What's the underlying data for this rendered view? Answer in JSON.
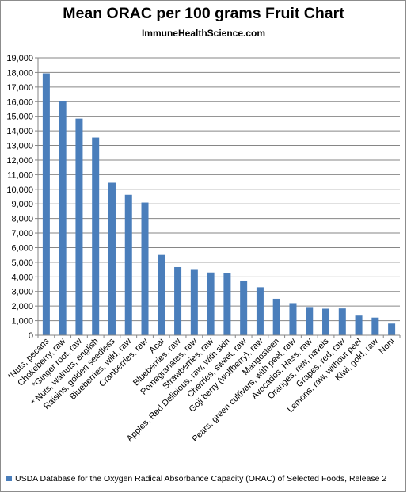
{
  "header": {
    "title": "Mean ORAC per 100 grams Fruit Chart",
    "subtitle": "ImmuneHealthScience.com"
  },
  "legend": {
    "label": "USDA Database for the Oxygen Radical Absorbance Capacity (ORAC) of Selected Foods, Release 2"
  },
  "colors": {
    "bar": "#4a7ebb",
    "grid": "#868686",
    "axis": "#868686"
  },
  "chart_data": {
    "type": "bar",
    "title": "Mean ORAC per 100 grams Fruit Chart",
    "subtitle": "ImmuneHealthScience.com",
    "xlabel": "",
    "ylabel": "",
    "ylim": [
      0,
      19000
    ],
    "y_ticks": [
      "0",
      "1,000",
      "2,000",
      "3,000",
      "4,000",
      "5,000",
      "6,000",
      "7,000",
      "8,000",
      "9,000",
      "10,000",
      "11,000",
      "12,000",
      "13,000",
      "14,000",
      "15,000",
      "16,000",
      "17,000",
      "18,000",
      "19,000"
    ],
    "grid": true,
    "legend_position": "bottom",
    "categories": [
      "*Nuts, pecans",
      "Chokeberry, raw",
      "*Ginger root, raw",
      "* Nuts, walnuts, english",
      "Raisins, golden seedless",
      "Blueberries, wild, raw",
      "Cranberries, raw",
      "Acai",
      "Blueberries, raw",
      "Pomegranates, raw",
      "Strawberries, raw",
      "Apples, Red Delicious, raw, with skin",
      "Cherries, sweet, raw",
      "Goji berry (wolfberry), raw",
      "Mangosteen",
      "Pears, green cultivars, with peel, raw",
      "Avocados, Hass, raw",
      "Oranges, raw, navels",
      "Grapes, red, raw",
      "Lemons, raw, without peel",
      "Kiwi, gold, raw",
      "Noni"
    ],
    "series": [
      {
        "name": "USDA Database for the Oxygen Radical Absorbance Capacity (ORAC) of Selected Foods, Release 2",
        "values": [
          17940,
          16062,
          14840,
          13541,
          10450,
          9621,
          9090,
          5500,
          4669,
          4479,
          4302,
          4275,
          3747,
          3290,
          2500,
          2201,
          1933,
          1819,
          1837,
          1346,
          1210,
          800
        ]
      }
    ]
  }
}
